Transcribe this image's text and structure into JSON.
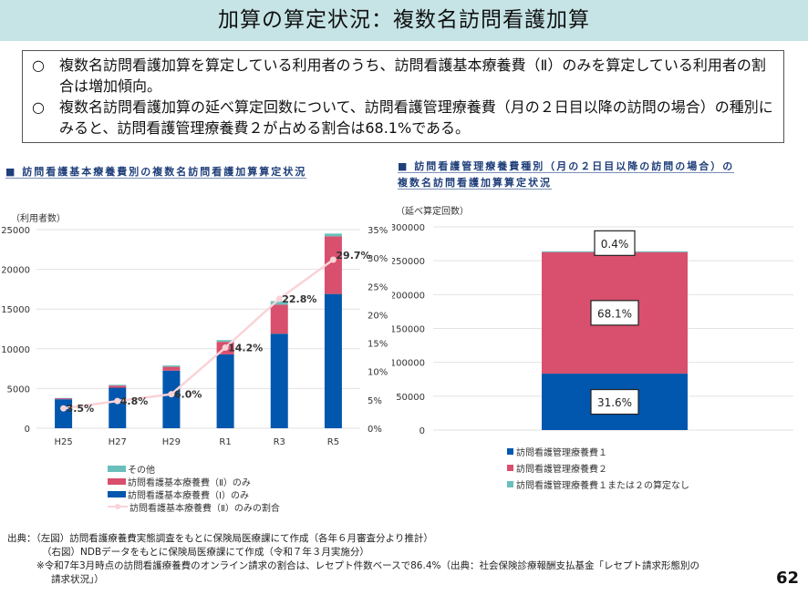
{
  "header": {
    "title": "加算の算定状況：複数名訪問看護加算"
  },
  "summary": {
    "bullet": "○",
    "items": [
      "複数名訪問看護加算を算定している利用者のうち、訪問看護基本療養費（Ⅱ）のみを算定している利用者の割合は増加傾向。",
      "複数名訪問看護加算の延べ算定回数について、訪問看護管理療養費（月の２日目以降の訪問の場合）の種別にみると、訪問看護管理療養費２が占める割合は68.1%である。"
    ]
  },
  "colors": {
    "blue": "#0057ad",
    "pink": "#d94f6e",
    "teal": "#6abfbc",
    "line": "#f9d3d8"
  },
  "left_chart": {
    "title": "■ 訪問看護基本療養費別の複数名訪問看護加算算定状況",
    "unit_label": "（利用者数）"
  },
  "right_chart": {
    "title_line1": "■ 訪問看護管理療養費種別（月の２日目以降の訪問の場合）の",
    "title_line2": "複数名訪問看護加算算定状況",
    "unit_label": "（延べ算定回数）"
  },
  "chart_data": [
    {
      "type": "bar",
      "stacked": true,
      "title": "訪問看護基本療養費別の複数名訪問看護加算算定状況",
      "ylabel": "（利用者数）",
      "categories": [
        "H25",
        "H27",
        "H29",
        "R1",
        "R3",
        "R5"
      ],
      "ylim": [
        0,
        25000
      ],
      "yticks": [
        0,
        5000,
        10000,
        15000,
        20000,
        25000
      ],
      "y2lim": [
        0,
        35
      ],
      "y2ticks": [
        "0%",
        "5%",
        "10%",
        "15%",
        "20%",
        "25%",
        "30%",
        "35%"
      ],
      "series": [
        {
          "name": "訪問看護基本療養費（Ⅰ）のみ",
          "color": "#0057ad",
          "values": [
            3650,
            5100,
            7250,
            9300,
            11900,
            16900
          ]
        },
        {
          "name": "訪問看護基本療養費（Ⅱ）のみ",
          "color": "#d94f6e",
          "values": [
            130,
            270,
            480,
            1580,
            3650,
            7250
          ]
        },
        {
          "name": "その他",
          "color": "#6abfbc",
          "values": [
            30,
            100,
            170,
            220,
            450,
            350
          ]
        }
      ],
      "line_series": {
        "name": "訪問看護基本療養費（Ⅱ）のみの割合",
        "axis": "right",
        "values": [
          3.5,
          4.8,
          6.0,
          14.2,
          22.8,
          29.7
        ],
        "labels": [
          "3.5%",
          "4.8%",
          "6.0%",
          "14.2%",
          "22.8%",
          "29.7%"
        ]
      },
      "legend": [
        "その他",
        "訪問看護基本療養費（Ⅱ）のみ",
        "訪問看護基本療養費（Ⅰ）のみ",
        "訪問看護基本療養費（Ⅱ）のみの割合"
      ],
      "legend_position": "bottom",
      "grid": true
    },
    {
      "type": "bar",
      "stacked": true,
      "title": "訪問看護管理療養費種別（月の２日目以降の訪問の場合）の複数名訪問看護加算算定状況",
      "ylabel": "（延べ算定回数）",
      "categories": [
        ""
      ],
      "ylim": [
        0,
        300000
      ],
      "yticks": [
        0,
        50000,
        100000,
        150000,
        200000,
        250000,
        300000
      ],
      "series": [
        {
          "name": "訪問看護管理療養費１",
          "color": "#0057ad",
          "values": [
            83300
          ],
          "label": "31.6%"
        },
        {
          "name": "訪問看護管理療養費２",
          "color": "#d94f6e",
          "values": [
            179500
          ],
          "label": "68.1%"
        },
        {
          "name": "訪問看護管理療養費１または２の算定なし",
          "color": "#6abfbc",
          "values": [
            1100
          ],
          "label": "0.4%"
        }
      ],
      "legend": [
        "訪問看護管理療養費１",
        "訪問看護管理療養費２",
        "訪問看護管理療養費１または２の算定なし"
      ],
      "legend_position": "bottom",
      "grid": true
    }
  ],
  "footer": {
    "line1": "出典：（左図）訪問看護療養費実態調査をもとに保険局医療課にて作成（各年６月審査分より推計）",
    "line2": "（右図）NDBデータをもとに保険局医療課にて作成（令和７年３月実施分）",
    "line3": "※令和7年3月時点の訪問看護療養費のオンライン請求の割合は、レセプト件数ベースで86.4%（出典：社会保険診療報酬支払基金「レセプト請求形態別の",
    "line4": "請求状況」）"
  },
  "page_number": "62"
}
